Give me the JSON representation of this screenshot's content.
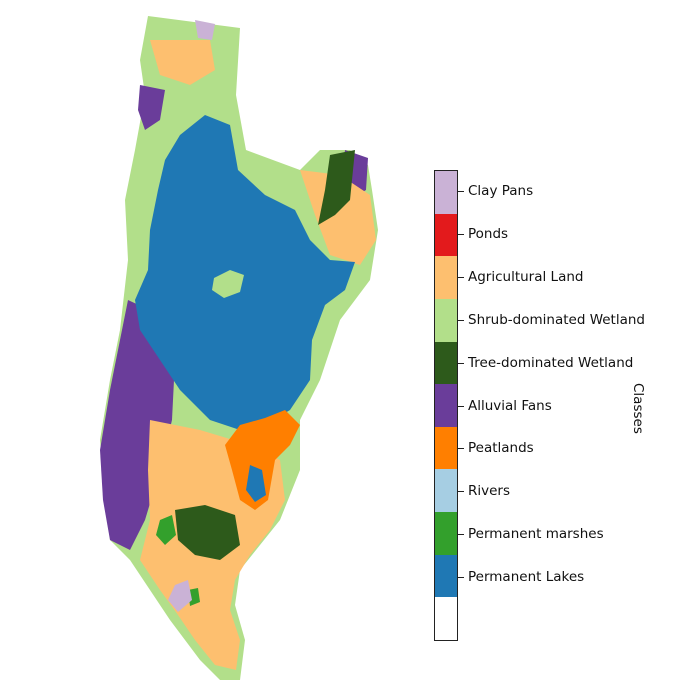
{
  "colorbar": {
    "title": "Classes",
    "classes": [
      {
        "label": "",
        "color": "#ffffff"
      },
      {
        "label": "Permanent Lakes",
        "color": "#1f78b4"
      },
      {
        "label": "Permanent marshes",
        "color": "#33a02c"
      },
      {
        "label": "Rivers",
        "color": "#a6cee3"
      },
      {
        "label": "Peatlands",
        "color": "#ff7f00"
      },
      {
        "label": "Alluvial Fans",
        "color": "#6a3d9a"
      },
      {
        "label": "Tree-dominated Wetland",
        "color": "#2d5a1b"
      },
      {
        "label": "Shrub-dominated Wetland",
        "color": "#b2df8a"
      },
      {
        "label": "Agricultural Land",
        "color": "#fdbf6f"
      },
      {
        "label": "Ponds",
        "color": "#e31a1c"
      },
      {
        "label": "Clay Pans",
        "color": "#cab2d6"
      }
    ]
  }
}
